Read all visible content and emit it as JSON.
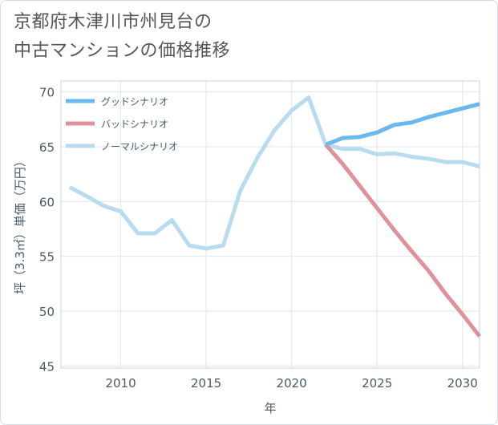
{
  "chart_data": {
    "type": "line",
    "title_lines": [
      "京都府木津川市州見台の",
      "中古マンションの価格推移"
    ],
    "xlabel": "年",
    "ylabel": "坪（3.3㎡）単価（万円）",
    "xlim": [
      2006.5,
      2031
    ],
    "ylim": [
      44.8,
      71
    ],
    "xticks": [
      2010,
      2015,
      2020,
      2025,
      2030
    ],
    "yticks": [
      45,
      50,
      55,
      60,
      65,
      70
    ],
    "grid": true,
    "legend_position": "top-left",
    "series": [
      {
        "name": "グッドシナリオ",
        "color": "#6ab8ee",
        "x": [
          2022,
          2023,
          2024,
          2025,
          2026,
          2027,
          2028,
          2029,
          2030,
          2031
        ],
        "y": [
          65.2,
          65.8,
          65.9,
          66.3,
          67.0,
          67.2,
          67.7,
          68.1,
          68.5,
          68.9
        ]
      },
      {
        "name": "バッドシナリオ",
        "color": "#e0929a",
        "x": [
          2022,
          2023,
          2024,
          2025,
          2026,
          2027,
          2028,
          2029,
          2030,
          2031
        ],
        "y": [
          65.2,
          63.4,
          61.4,
          59.4,
          57.4,
          55.5,
          53.7,
          51.6,
          49.7,
          47.7
        ]
      },
      {
        "name": "ノーマルシナリオ",
        "color": "#b8dcee",
        "x": [
          2007,
          2008,
          2009,
          2010,
          2011,
          2012,
          2013,
          2014,
          2015,
          2016,
          2017,
          2018,
          2019,
          2020,
          2021,
          2022,
          2023,
          2024,
          2025,
          2026,
          2027,
          2028,
          2029,
          2030,
          2031
        ],
        "y": [
          61.3,
          60.5,
          59.6,
          59.1,
          57.1,
          57.1,
          58.3,
          56.0,
          55.7,
          56.0,
          61.0,
          64.0,
          66.5,
          68.3,
          69.5,
          65.2,
          64.8,
          64.8,
          64.3,
          64.4,
          64.1,
          63.9,
          63.6,
          63.6,
          63.2
        ]
      }
    ]
  }
}
